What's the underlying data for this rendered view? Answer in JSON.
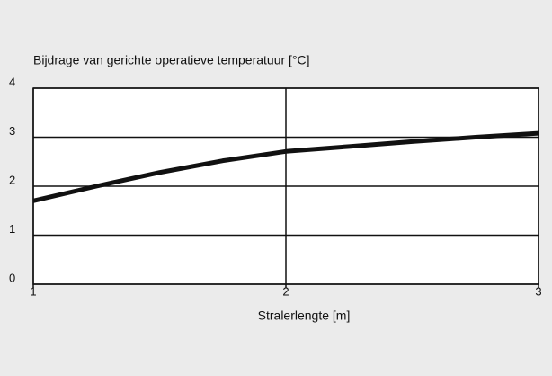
{
  "chart_data": {
    "type": "line",
    "title": "Bijdrage van gerichte operatieve temperatuur [°C]",
    "x_label": "Stralerlengte [m]",
    "x": [
      1,
      1.25,
      1.5,
      1.75,
      2,
      2.25,
      2.5,
      2.75,
      3
    ],
    "series": [
      {
        "name": "Bijdrage",
        "color": "#111111",
        "values": [
          1.7,
          2.0,
          2.28,
          2.52,
          2.71,
          2.81,
          2.91,
          3.0,
          3.08
        ]
      }
    ],
    "xlim": [
      1,
      3
    ],
    "xticks": [
      1,
      2,
      3
    ],
    "ylim": [
      0,
      4
    ],
    "yticks": [
      0,
      1,
      2,
      3,
      4
    ],
    "grid": true
  }
}
